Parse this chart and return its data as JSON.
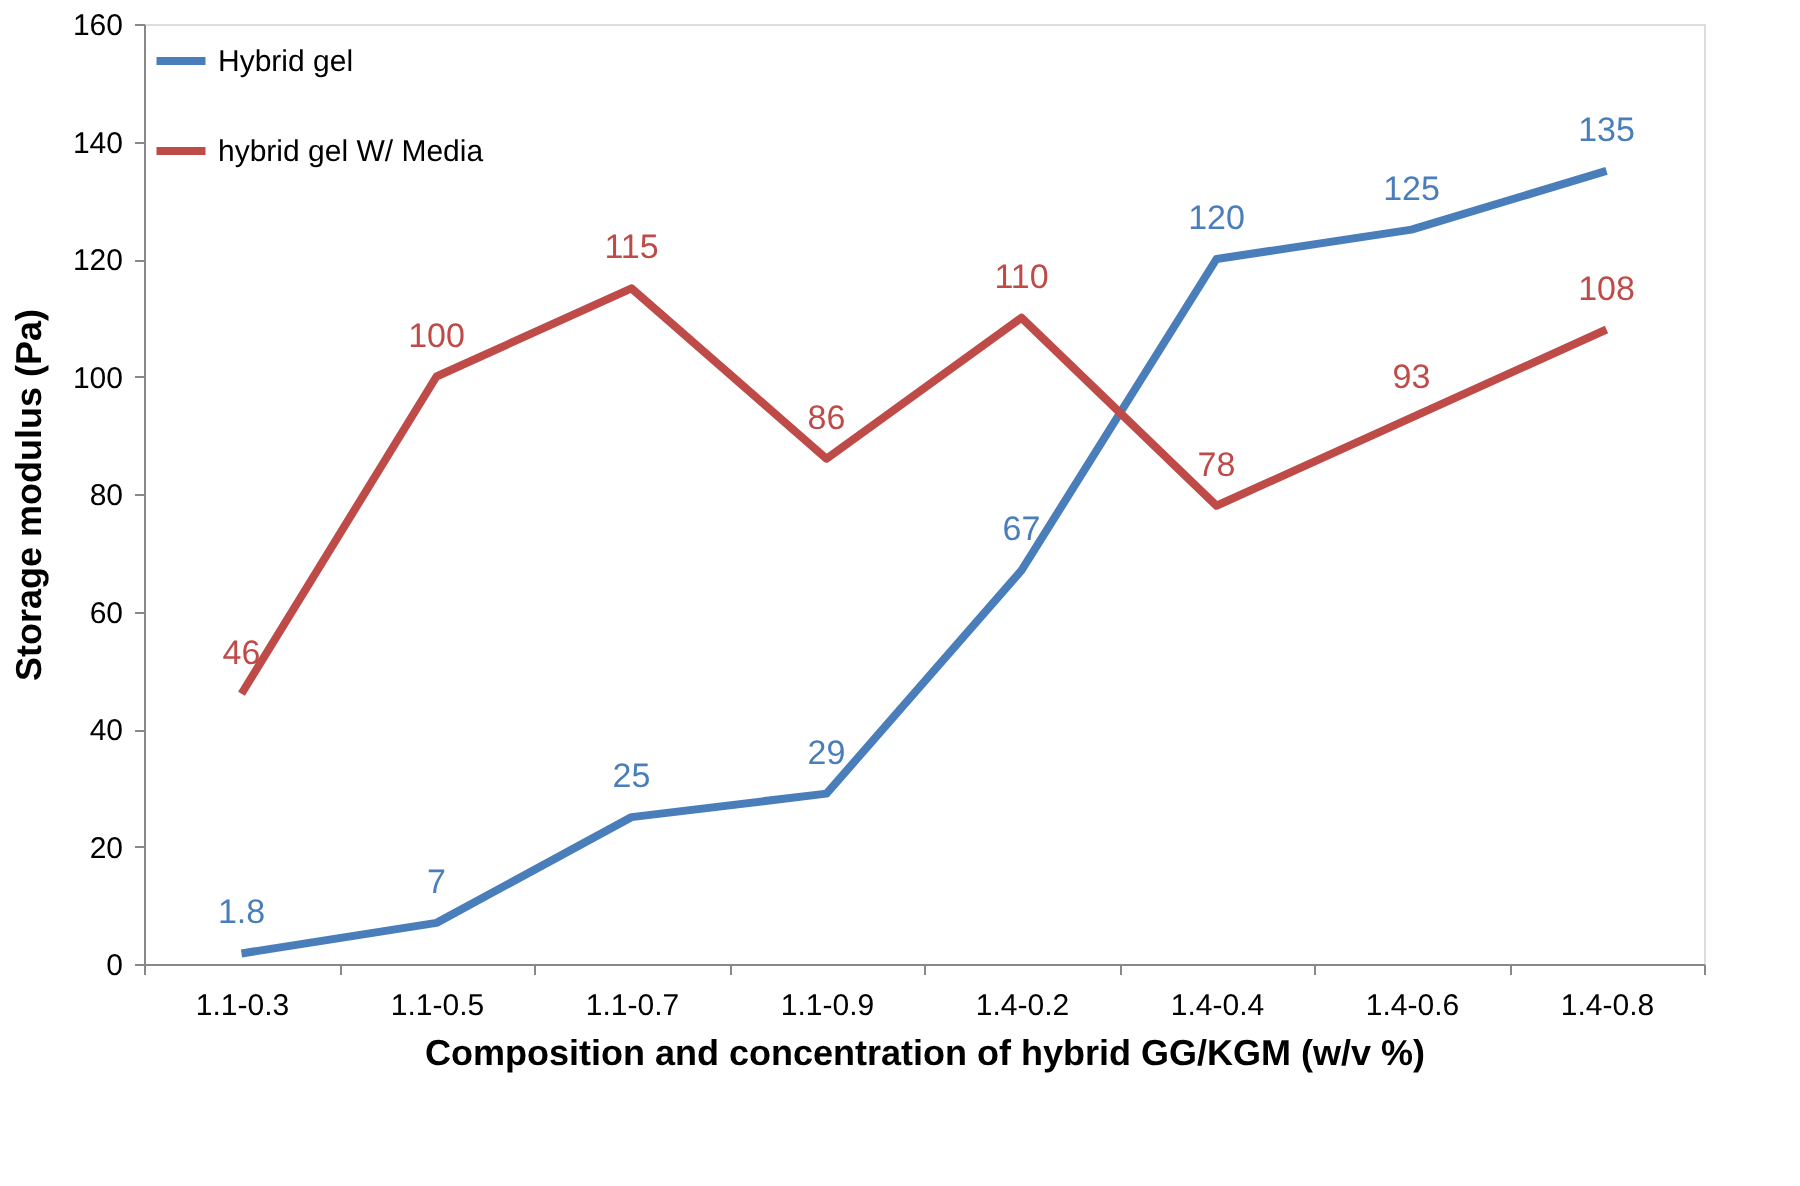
{
  "chart_data": {
    "type": "line",
    "xlabel": "Composition and concentration of hybrid GG/KGM (w/v %)",
    "ylabel": "Storage modulus (Pa)",
    "categories": [
      "1.1-0.3",
      "1.1-0.5",
      "1.1-0.7",
      "1.1-0.9",
      "1.4-0.2",
      "1.4-0.4",
      "1.4-0.6",
      "1.4-0.8"
    ],
    "series": [
      {
        "name": "Hybrid gel",
        "color": "#4a7ebb",
        "values": [
          1.8,
          7,
          25,
          29,
          67,
          120,
          125,
          135
        ]
      },
      {
        "name": "hybrid gel W/ Media",
        "color": "#be4b48",
        "values": [
          46,
          100,
          115,
          86,
          110,
          78,
          93,
          108
        ]
      }
    ],
    "ylim": [
      0,
      160
    ],
    "yticks": [
      0,
      20,
      40,
      60,
      80,
      100,
      120,
      140,
      160
    ],
    "grid": false,
    "legend": "top left",
    "data_labels": true,
    "marker": "none",
    "line_style": "solid"
  }
}
